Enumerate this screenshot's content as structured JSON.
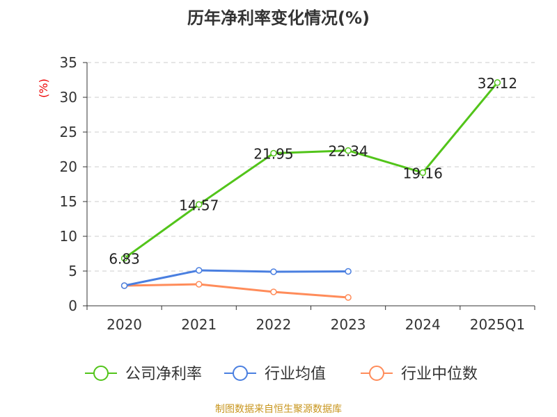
{
  "chart_data": {
    "type": "line",
    "title": "历年净利率变化情况(%)",
    "ylabel": "(%)",
    "categories": [
      "2020",
      "2021",
      "2022",
      "2023",
      "2024",
      "2025Q1"
    ],
    "ylim": [
      0,
      35
    ],
    "yticks": [
      0,
      5,
      10,
      15,
      20,
      25,
      30,
      35
    ],
    "grid": true,
    "legend_position": "bottom",
    "series": [
      {
        "name": "公司净利率",
        "color": "#52c41a",
        "values": [
          6.83,
          14.57,
          21.95,
          22.34,
          19.16,
          32.12
        ],
        "labels": [
          "6.83",
          "14.57",
          "21.95",
          "22.34",
          "19.16",
          "32.12"
        ]
      },
      {
        "name": "行业均值",
        "color": "#4a7fe0",
        "values": [
          2.9,
          5.1,
          4.9,
          4.95,
          null,
          null
        ]
      },
      {
        "name": "行业中位数",
        "color": "#ff8c5a",
        "values": [
          2.9,
          3.1,
          2.0,
          1.2,
          null,
          null
        ]
      }
    ]
  },
  "footer": "制图数据来自恒生聚源数据库"
}
